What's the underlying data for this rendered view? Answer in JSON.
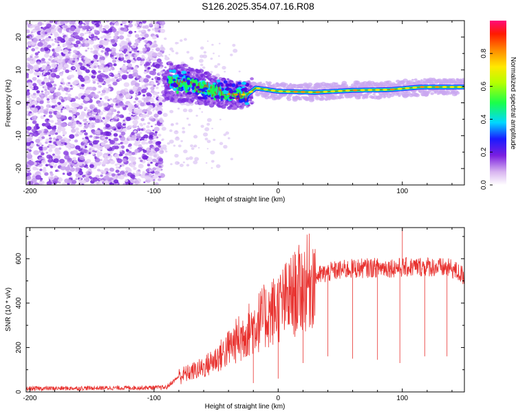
{
  "title": "S126.2025.354.07.16.R08",
  "chart_data": [
    {
      "type": "heatmap",
      "name": "spectrogram",
      "xlabel": "Height of straight line (km)",
      "ylabel": "Frequency (Hz)",
      "xlim": [
        -203,
        150
      ],
      "ylim": [
        -25,
        25
      ],
      "xticks": [
        -200,
        -100,
        0,
        100
      ],
      "yticks": [
        -20,
        -10,
        0,
        10,
        20
      ],
      "colorbar": {
        "label": "Normalized spectral amplitude",
        "range": [
          0,
          1
        ],
        "ticks": [
          0.0,
          0.2,
          0.4,
          0.6,
          0.8
        ]
      },
      "ridge_frequency_hz": [
        {
          "x": -90,
          "y": 6.5
        },
        {
          "x": -75,
          "y": 6.0
        },
        {
          "x": -60,
          "y": 4.5
        },
        {
          "x": -48,
          "y": 3.5
        },
        {
          "x": -38,
          "y": 2.5
        },
        {
          "x": -25,
          "y": 2.5
        },
        {
          "x": -18,
          "y": 4.5
        },
        {
          "x": 0,
          "y": 3.5
        },
        {
          "x": 30,
          "y": 3.2
        },
        {
          "x": 60,
          "y": 3.8
        },
        {
          "x": 90,
          "y": 4.0
        },
        {
          "x": 115,
          "y": 4.8
        },
        {
          "x": 150,
          "y": 4.8
        }
      ]
    },
    {
      "type": "line",
      "name": "snr",
      "xlabel": "Height of straight line (km)",
      "ylabel": "SNR (10 * v/v)",
      "xlim": [
        -203,
        150
      ],
      "ylim": [
        0,
        740
      ],
      "xticks": [
        -200,
        -100,
        0,
        100
      ],
      "yticks": [
        0,
        200,
        400,
        600
      ],
      "color": "#e8312e",
      "envelope": [
        {
          "x": -203,
          "y": 15
        },
        {
          "x": -90,
          "y": 20
        },
        {
          "x": -80,
          "y": 70
        },
        {
          "x": -60,
          "y": 110
        },
        {
          "x": -45,
          "y": 170
        },
        {
          "x": -30,
          "y": 250
        },
        {
          "x": -15,
          "y": 320
        },
        {
          "x": 0,
          "y": 380
        },
        {
          "x": 15,
          "y": 450
        },
        {
          "x": 30,
          "y": 520
        },
        {
          "x": 45,
          "y": 545
        },
        {
          "x": 60,
          "y": 555
        },
        {
          "x": 80,
          "y": 560
        },
        {
          "x": 100,
          "y": 560
        },
        {
          "x": 120,
          "y": 565
        },
        {
          "x": 140,
          "y": 555
        },
        {
          "x": 150,
          "y": 520
        }
      ],
      "dropouts": [
        {
          "x": -30,
          "y": 140
        },
        {
          "x": -20,
          "y": 40
        },
        {
          "x": 0,
          "y": 60
        },
        {
          "x": 20,
          "y": 130
        },
        {
          "x": 40,
          "y": 160
        },
        {
          "x": 60,
          "y": 150
        },
        {
          "x": 80,
          "y": 145
        },
        {
          "x": 98,
          "y": 130
        },
        {
          "x": 118,
          "y": 160
        },
        {
          "x": 136,
          "y": 160
        }
      ],
      "spike": {
        "x": 100,
        "y": 740
      }
    }
  ]
}
